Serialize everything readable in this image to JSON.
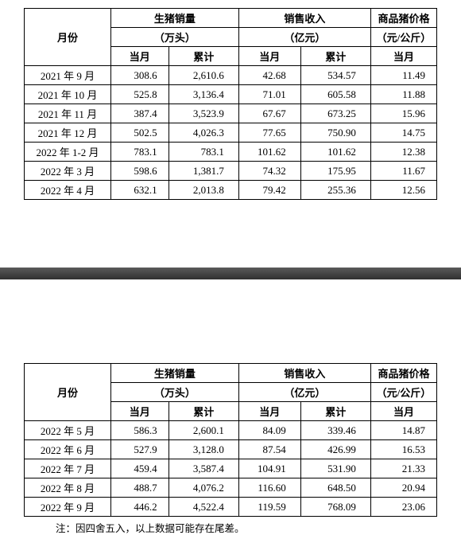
{
  "headers": {
    "month": "月份",
    "sales_volume": "生猪销量",
    "sales_volume_unit": "（万头）",
    "sales_revenue": "销售收入",
    "sales_revenue_unit": "（亿元）",
    "price": "商品猪价格",
    "price_unit": "（元/公斤）",
    "current": "当月",
    "cumulative": "累计"
  },
  "table1_rows": [
    {
      "month": "2021 年 9 月",
      "vol_cur": "308.6",
      "vol_cum": "2,610.6",
      "rev_cur": "42.68",
      "rev_cum": "534.57",
      "price": "11.49"
    },
    {
      "month": "2021 年 10 月",
      "vol_cur": "525.8",
      "vol_cum": "3,136.4",
      "rev_cur": "71.01",
      "rev_cum": "605.58",
      "price": "11.88"
    },
    {
      "month": "2021 年 11 月",
      "vol_cur": "387.4",
      "vol_cum": "3,523.9",
      "rev_cur": "67.67",
      "rev_cum": "673.25",
      "price": "15.96"
    },
    {
      "month": "2021 年 12 月",
      "vol_cur": "502.5",
      "vol_cum": "4,026.3",
      "rev_cur": "77.65",
      "rev_cum": "750.90",
      "price": "14.75"
    },
    {
      "month": "2022 年 1-2 月",
      "vol_cur": "783.1",
      "vol_cum": "783.1",
      "rev_cur": "101.62",
      "rev_cum": "101.62",
      "price": "12.38"
    },
    {
      "month": "2022 年 3 月",
      "vol_cur": "598.6",
      "vol_cum": "1,381.7",
      "rev_cur": "74.32",
      "rev_cum": "175.95",
      "price": "11.67"
    },
    {
      "month": "2022 年 4 月",
      "vol_cur": "632.1",
      "vol_cum": "2,013.8",
      "rev_cur": "79.42",
      "rev_cum": "255.36",
      "price": "12.56"
    }
  ],
  "table2_rows": [
    {
      "month": "2022 年 5 月",
      "vol_cur": "586.3",
      "vol_cum": "2,600.1",
      "rev_cur": "84.09",
      "rev_cum": "339.46",
      "price": "14.87"
    },
    {
      "month": "2022 年 6 月",
      "vol_cur": "527.9",
      "vol_cum": "3,128.0",
      "rev_cur": "87.54",
      "rev_cum": "426.99",
      "price": "16.53"
    },
    {
      "month": "2022 年 7 月",
      "vol_cur": "459.4",
      "vol_cum": "3,587.4",
      "rev_cur": "104.91",
      "rev_cum": "531.90",
      "price": "21.33"
    },
    {
      "month": "2022 年 8 月",
      "vol_cur": "488.7",
      "vol_cum": "4,076.2",
      "rev_cur": "116.60",
      "rev_cum": "648.50",
      "price": "20.94"
    },
    {
      "month": "2022 年 9 月",
      "vol_cur": "446.2",
      "vol_cum": "4,522.4",
      "rev_cur": "119.59",
      "rev_cum": "768.09",
      "price": "23.06"
    }
  ],
  "footnote": "注：因四舍五入，以上数据可能存在尾差。",
  "col_widths": {
    "month": "21%",
    "vol_cur": "14%",
    "vol_cum": "17%",
    "rev_cur": "15%",
    "rev_cum": "17%",
    "price": "16%"
  }
}
